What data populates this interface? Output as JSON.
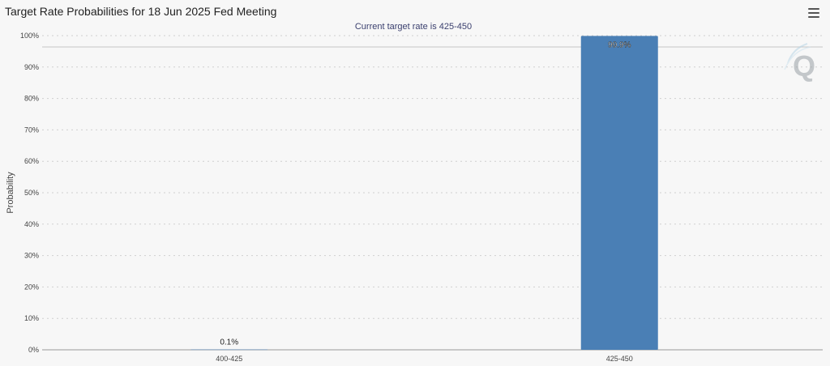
{
  "header": {
    "title": "Target Rate Probabilities for 18 Jun 2025 Fed Meeting",
    "menu_icon": "hamburger-menu-icon"
  },
  "watermark": {
    "icon": "q-logo-icon",
    "text": "Q"
  },
  "chart_data": {
    "type": "bar",
    "title": "Target Rate Probabilities for 18 Jun 2025 Fed Meeting",
    "subtitle": "Current target rate is 425-450",
    "xlabel": "",
    "ylabel": "Probability",
    "categories": [
      "400-425",
      "425-450"
    ],
    "values": [
      0.1,
      99.9
    ],
    "data_labels": [
      "0.1%",
      "99.9%"
    ],
    "ylim": [
      0,
      100
    ],
    "yticks": [
      0,
      10,
      20,
      30,
      40,
      50,
      60,
      70,
      80,
      90,
      100
    ],
    "ytick_labels": [
      "0%",
      "10%",
      "20%",
      "30%",
      "40%",
      "50%",
      "60%",
      "70%",
      "80%",
      "90%",
      "100%"
    ],
    "grid": true,
    "legend": "none",
    "bar_color": "#4a7fb5"
  }
}
